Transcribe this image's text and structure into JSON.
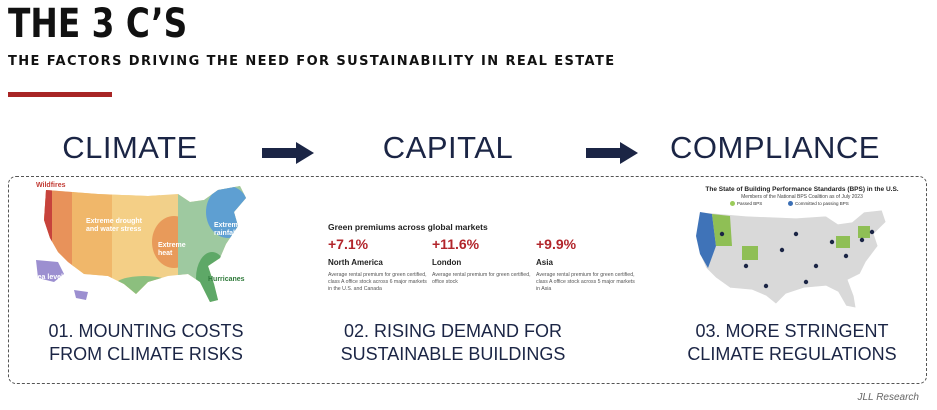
{
  "header": {
    "title": "THE 3 C’S",
    "subtitle": "THE FACTORS DRIVING THE NEED FOR SUSTAINABILITY IN REAL ESTATE"
  },
  "pillars": [
    {
      "label": "CLIMATE",
      "caption_line1": "01. MOUNTING COSTS",
      "caption_line2": "FROM CLIMATE RISKS"
    },
    {
      "label": "CAPITAL",
      "caption_line1": "02. RISING DEMAND FOR",
      "caption_line2": "SUSTAINABLE BUILDINGS"
    },
    {
      "label": "COMPLIANCE",
      "caption_line1": "03. MORE STRINGENT",
      "caption_line2": "CLIMATE REGULATIONS"
    }
  ],
  "climate_map": {
    "labels": {
      "wildfires": "Wildfires",
      "drought": "Extreme drought and water stress",
      "heat": "Extreme heat",
      "rainfall": "Extreme rainfall",
      "hurricanes": "Hurricanes",
      "sea_level": "Sea level rise"
    }
  },
  "capital_panel": {
    "title": "Green premiums across global markets",
    "markets": [
      {
        "value": "+7.1%",
        "region": "North America",
        "desc": "Average rental premium for green certified, class A office stock across 6 major markets in the U.S. and Canada"
      },
      {
        "value": "+11.6%",
        "region": "London",
        "desc": "Average rental premium for green certified, office stock"
      },
      {
        "value": "+9.9%",
        "region": "Asia",
        "desc": "Average rental premium for green certified, class A office stock across 5 major markets in Asia"
      }
    ]
  },
  "compliance_map": {
    "title": "The State of Building Performance Standards (BPS) in the U.S.",
    "subtitle": "Members of the National BPS Coalition as of July 2023",
    "legend": [
      "Passed BPS",
      "Committed to passing BPS"
    ]
  },
  "footer": {
    "source": "JLL Research"
  },
  "colors": {
    "navy": "#1b2545",
    "accent_red": "#a82525",
    "premium_red": "#b2252b"
  }
}
